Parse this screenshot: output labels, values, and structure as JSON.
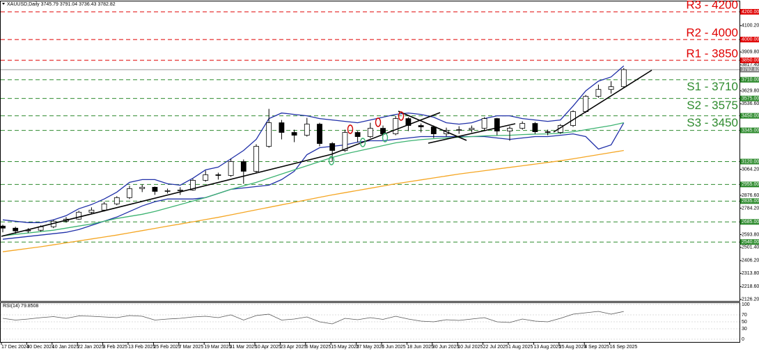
{
  "chart_data": {
    "type": "candlestick",
    "title": "XAUUSD,Daily  3745.79 3791.04 3736.43 3782.82",
    "categories": [
      "17 Dec 2024",
      null,
      "30 Dec 2024",
      null,
      "10 Jan 2025",
      null,
      "22 Jan 2025",
      null,
      "3 Feb 2025",
      null,
      "13 Feb 2025",
      null,
      "25 Feb 2025",
      null,
      "7 Mar 2025",
      null,
      "19 Mar 2025",
      null,
      "31 Mar 2025",
      null,
      "10 Apr 2025",
      null,
      "23 Apr 2025",
      null,
      "5 May 2025",
      null,
      "15 May 2025",
      null,
      "27 May 2025",
      null,
      "6 Jun 2025",
      null,
      "18 Jun 2025",
      null,
      "30 Jun 2025",
      null,
      "10 Jul 2025",
      null,
      "22 Jul 2025",
      null,
      "1 Aug 2025",
      null,
      "13 Aug 2025",
      null,
      "25 Aug 2025",
      null,
      "4 Sep 2025",
      null,
      "16 Sep 2025",
      null
    ],
    "open": [
      2655,
      2640,
      2620,
      2625,
      2650,
      2690,
      2705,
      2755,
      2770,
      2815,
      2860,
      2925,
      2935,
      2905,
      2910,
      2915,
      2985,
      3025,
      3020,
      3120,
      3050,
      3230,
      3400,
      3330,
      3310,
      3390,
      3250,
      3200,
      3330,
      3300,
      3360,
      3320,
      3430,
      3380,
      3370,
      3320,
      3345,
      3350,
      3360,
      3430,
      3340,
      3360,
      3395,
      3335,
      3330,
      3380,
      3480,
      3590,
      3640,
      3660
    ],
    "high": [
      2665,
      2650,
      2640,
      2660,
      2700,
      2720,
      2765,
      2790,
      2830,
      2870,
      2945,
      2955,
      2940,
      2925,
      2935,
      2995,
      3055,
      3040,
      3140,
      3135,
      3245,
      3500,
      3420,
      3350,
      3435,
      3400,
      3260,
      3350,
      3340,
      3400,
      3380,
      3450,
      3440,
      3395,
      3380,
      3365,
      3375,
      3380,
      3440,
      3435,
      3375,
      3410,
      3405,
      3350,
      3390,
      3490,
      3600,
      3675,
      3700,
      3795
    ],
    "low": [
      2610,
      2600,
      2605,
      2615,
      2640,
      2680,
      2700,
      2745,
      2760,
      2805,
      2850,
      2900,
      2880,
      2890,
      2880,
      2910,
      2975,
      2990,
      3010,
      2960,
      3040,
      3220,
      3280,
      3260,
      3300,
      3230,
      3120,
      3190,
      3260,
      3290,
      3300,
      3310,
      3340,
      3330,
      3290,
      3300,
      3320,
      3330,
      3340,
      3310,
      3270,
      3350,
      3320,
      3310,
      3320,
      3370,
      3470,
      3580,
      3610,
      3650
    ],
    "close": [
      2640,
      2620,
      2625,
      2650,
      2690,
      2705,
      2755,
      2770,
      2815,
      2860,
      2925,
      2935,
      2905,
      2910,
      2915,
      2985,
      3025,
      3020,
      3120,
      3050,
      3230,
      3400,
      3330,
      3310,
      3390,
      3250,
      3200,
      3330,
      3300,
      3360,
      3320,
      3430,
      3380,
      3370,
      3320,
      3345,
      3350,
      3360,
      3430,
      3340,
      3360,
      3395,
      3335,
      3330,
      3380,
      3480,
      3590,
      3640,
      3660,
      3782.82
    ],
    "up_color": "#ffffff",
    "down_color": "#000000",
    "ylim": [
      2120,
      4275
    ],
    "yticks": [
      {
        "value": 4100.2,
        "label": "4100.20"
      },
      {
        "value": 3909.8,
        "label": "3909.80"
      },
      {
        "value": 3817.4,
        "label": "3817.40"
      },
      {
        "value": 3629.8,
        "label": "3629.80"
      },
      {
        "value": 3536.6,
        "label": "3536.60"
      },
      {
        "value": 3347,
        "label": "3347.00"
      },
      {
        "value": 3064.2,
        "label": "3064.20"
      },
      {
        "value": 2876.6,
        "label": "2876.60"
      },
      {
        "value": 2784.2,
        "label": "2784.20"
      },
      {
        "value": 2593.8,
        "label": "2593.80"
      },
      {
        "value": 2501.4,
        "label": "2501.40"
      },
      {
        "value": 2406.2,
        "label": "2406.20"
      },
      {
        "value": 2313.8,
        "label": "2313.80"
      },
      {
        "value": 2218.6,
        "label": "2218.60"
      },
      {
        "value": 2126.2,
        "label": "2126.20"
      }
    ],
    "last_price": {
      "value": 3782.82,
      "label": "3782.82"
    },
    "levels": [
      {
        "name": "R3 - 4200",
        "value": 4200,
        "axis_label": "4200.00",
        "color": "#e00000",
        "label_side": "above"
      },
      {
        "name": "R2 - 4000",
        "value": 4000,
        "axis_label": "4000.00",
        "color": "#e00000",
        "label_side": "above"
      },
      {
        "name": "R1 - 3850",
        "value": 3850,
        "axis_label": "3850.00",
        "color": "#e00000",
        "label_side": "above"
      },
      {
        "name": "S1 - 3710",
        "value": 3710,
        "axis_label": "3710.00",
        "color": "#2e8b2e",
        "label_side": "below"
      },
      {
        "name": "S2 - 3575",
        "value": 3575,
        "axis_label": "3575.00",
        "color": "#2e8b2e",
        "label_side": "below"
      },
      {
        "name": "S3 - 3450",
        "value": 3450,
        "axis_label": "3450.00",
        "color": "#2e8b2e",
        "label_side": "below"
      },
      {
        "value": 3345,
        "axis_label": "3345.00",
        "color": "#2e8b2e"
      },
      {
        "value": 3120,
        "axis_label": "3120.00",
        "color": "#2e8b2e"
      },
      {
        "value": 2955,
        "axis_label": "2955.00",
        "color": "#2e8b2e"
      },
      {
        "value": 2835,
        "axis_label": "2835.00",
        "color": "#2e8b2e"
      },
      {
        "value": 2685,
        "axis_label": "2685.00",
        "color": "#2e8b2e"
      },
      {
        "value": 2540,
        "axis_label": "2540.00",
        "color": "#2e8b2e"
      }
    ],
    "lines": [
      {
        "color": "#1f2fa8",
        "values": [
          2700,
          2690,
          2680,
          2680,
          2700,
          2730,
          2780,
          2810,
          2850,
          2900,
          2970,
          2990,
          2990,
          2960,
          2950,
          3000,
          3060,
          3080,
          3140,
          3200,
          3280,
          3430,
          3470,
          3460,
          3450,
          3430,
          3420,
          3410,
          3400,
          3420,
          3440,
          3460,
          3470,
          3460,
          3440,
          3400,
          3390,
          3400,
          3430,
          3450,
          3450,
          3430,
          3420,
          3410,
          3420,
          3520,
          3630,
          3700,
          3730,
          3810
        ]
      },
      {
        "color": "#1f2fa8",
        "values": [
          2560,
          2570,
          2580,
          2590,
          2600,
          2610,
          2630,
          2660,
          2690,
          2720,
          2760,
          2800,
          2830,
          2850,
          2850,
          2850,
          2860,
          2890,
          2920,
          2930,
          2940,
          2950,
          2990,
          3050,
          3170,
          3220,
          3230,
          3240,
          3260,
          3270,
          3270,
          3280,
          3290,
          3300,
          3300,
          3300,
          3300,
          3300,
          3300,
          3290,
          3280,
          3290,
          3300,
          3300,
          3310,
          3320,
          3300,
          3210,
          3240,
          3400
        ]
      },
      {
        "color": "#3cb371",
        "values": [
          2585,
          2595,
          2605,
          2615,
          2625,
          2640,
          2655,
          2670,
          2690,
          2710,
          2725,
          2740,
          2760,
          2785,
          2810,
          2835,
          2860,
          2890,
          2920,
          2945,
          2970,
          3000,
          3030,
          3060,
          3090,
          3120,
          3150,
          3175,
          3195,
          3215,
          3235,
          3255,
          3268,
          3278,
          3285,
          3290,
          3295,
          3300,
          3305,
          3308,
          3310,
          3315,
          3318,
          3320,
          3325,
          3335,
          3350,
          3365,
          3380,
          3400
        ]
      },
      {
        "color": "#f5a623",
        "values": [
          2470,
          2482,
          2494,
          2506,
          2520,
          2534,
          2548,
          2562,
          2576,
          2590,
          2606,
          2622,
          2638,
          2654,
          2670,
          2686,
          2702,
          2718,
          2736,
          2754,
          2772,
          2790,
          2808,
          2826,
          2844,
          2862,
          2880,
          2896,
          2912,
          2928,
          2944,
          2960,
          2974,
          2988,
          3002,
          3016,
          3030,
          3042,
          3054,
          3066,
          3078,
          3090,
          3102,
          3114,
          3126,
          3140,
          3155,
          3170,
          3185,
          3200
        ]
      }
    ],
    "rsi": {
      "type": "line",
      "title": "RSI(14) 79.8508",
      "color": "#555555",
      "ylim": [
        0,
        100
      ],
      "yticks": [
        0,
        30,
        50,
        70,
        100
      ],
      "values": [
        60,
        55,
        58,
        62,
        65,
        60,
        67,
        66,
        64,
        62,
        68,
        66,
        55,
        58,
        60,
        64,
        66,
        62,
        70,
        55,
        68,
        72,
        55,
        58,
        64,
        50,
        44,
        60,
        56,
        62,
        57,
        66,
        58,
        52,
        50,
        56,
        54,
        58,
        62,
        50,
        48,
        58,
        52,
        50,
        60,
        72,
        76,
        80,
        72,
        79.85
      ]
    }
  }
}
